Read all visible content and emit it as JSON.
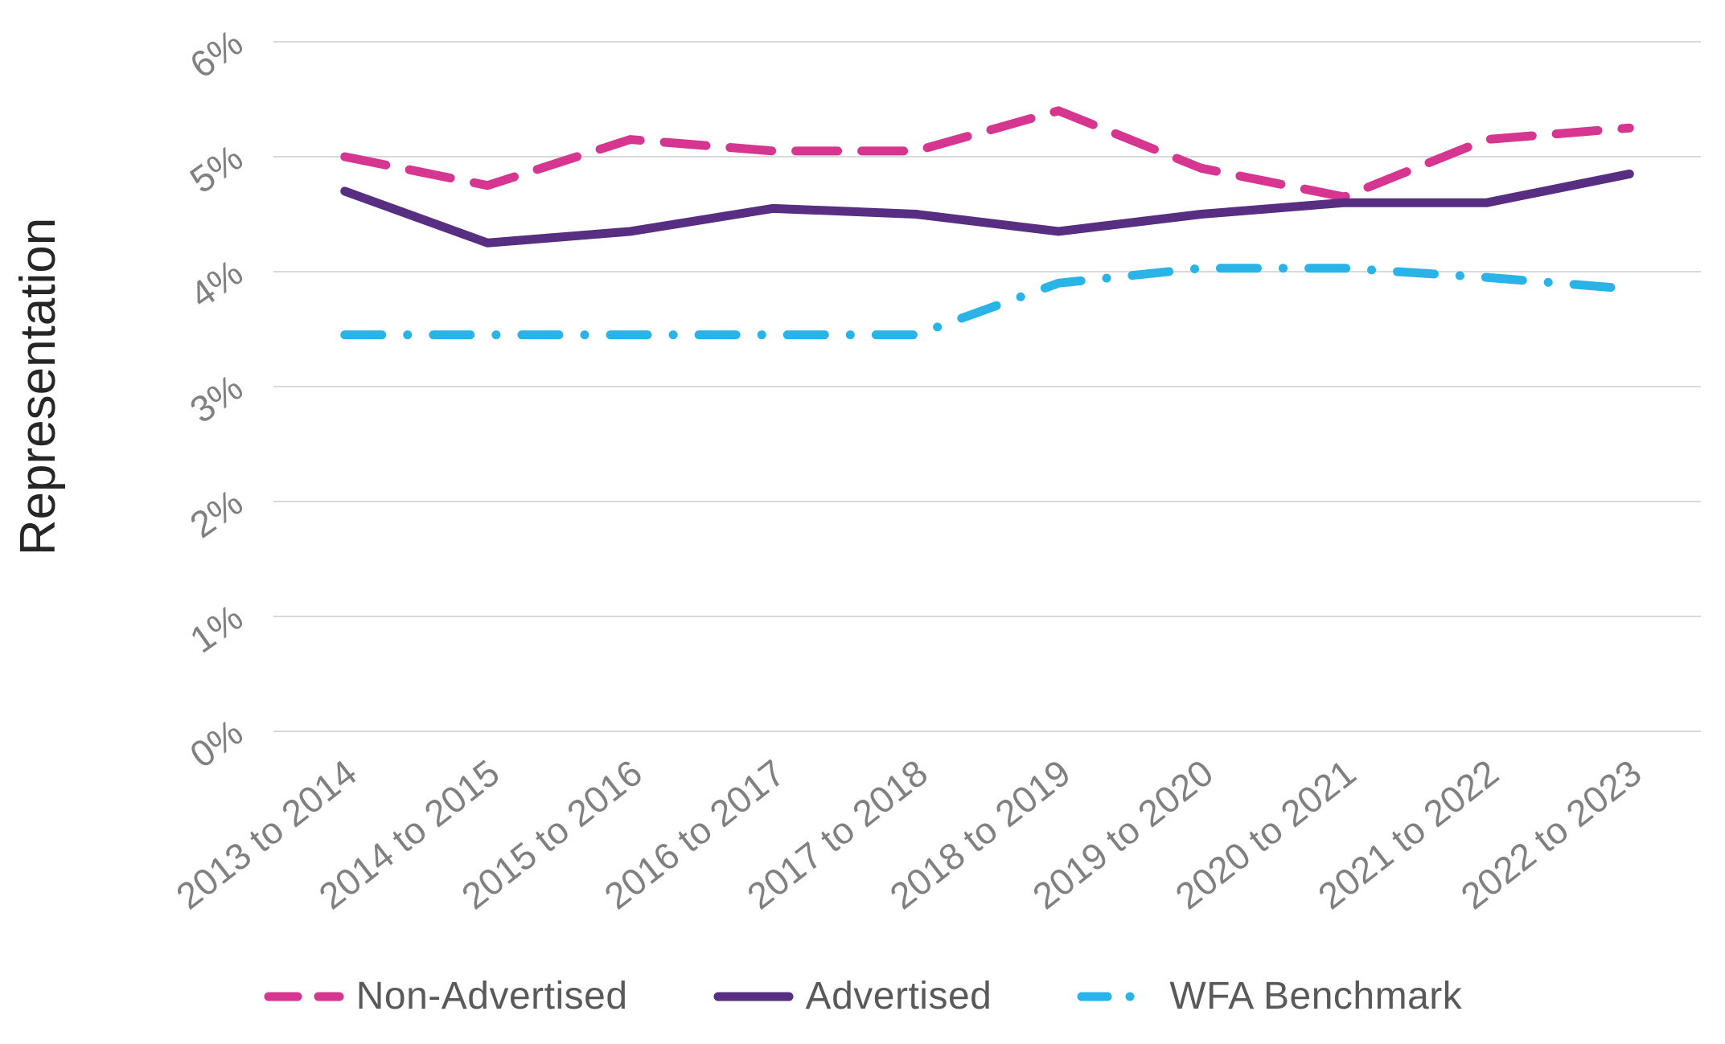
{
  "colors": {
    "grid": "#d9d9d9",
    "tick": "#808080",
    "legend_text": "#595959",
    "axis_title": "#262626",
    "background": "#ffffff"
  },
  "chart_data": {
    "type": "line",
    "title": "",
    "xlabel": "",
    "ylabel": "Representation",
    "ylim": [
      0,
      6
    ],
    "grid": true,
    "legend_position": "bottom",
    "y_ticks": [
      "0%",
      "1%",
      "2%",
      "3%",
      "4%",
      "5%",
      "6%"
    ],
    "categories": [
      "2013 to 2014",
      "2014 to 2015",
      "2015 to 2016",
      "2016 to 2017",
      "2017 to 2018",
      "2018 to 2019",
      "2019 to 2020",
      "2020 to 2021",
      "2021 to 2022",
      "2022 to 2023"
    ],
    "series": [
      {
        "name": "Non-Advertised",
        "color": "#d6368f",
        "style": "dashed",
        "values": [
          5.0,
          4.75,
          5.15,
          5.05,
          5.05,
          5.4,
          4.9,
          4.65,
          5.15,
          5.25
        ]
      },
      {
        "name": "Advertised",
        "color": "#582e83",
        "style": "solid",
        "values": [
          4.7,
          4.25,
          4.35,
          4.55,
          4.5,
          4.35,
          4.5,
          4.6,
          4.6,
          4.85
        ]
      },
      {
        "name": "WFA Benchmark",
        "color": "#29b3e7",
        "style": "dash-dot",
        "values": [
          3.45,
          3.45,
          3.45,
          3.45,
          3.45,
          3.9,
          4.03,
          4.03,
          3.95,
          3.85
        ]
      }
    ]
  }
}
